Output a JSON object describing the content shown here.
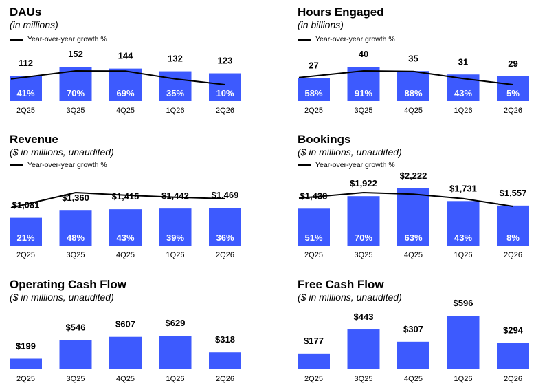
{
  "chart_data": [
    {
      "type": "bar",
      "title": "DAUs",
      "subtitle": "(in millions)",
      "legend": "Year-over-year growth %",
      "categories": [
        "2Q25",
        "3Q25",
        "4Q25",
        "1Q26",
        "2Q26"
      ],
      "values": [
        112,
        152,
        144,
        132,
        123
      ],
      "value_labels": [
        "112",
        "152",
        "144",
        "132",
        "123"
      ],
      "growth_labels": [
        "41%",
        "70%",
        "69%",
        "35%",
        "10%"
      ],
      "growth": [
        41,
        70,
        69,
        35,
        10
      ],
      "ylim": [
        0,
        152
      ]
    },
    {
      "type": "bar",
      "title": "Hours Engaged",
      "subtitle": "(in billions)",
      "legend": "Year-over-year growth %",
      "categories": [
        "2Q25",
        "3Q25",
        "4Q25",
        "1Q26",
        "2Q26"
      ],
      "values": [
        27,
        40,
        35,
        31,
        29
      ],
      "value_labels": [
        "27",
        "40",
        "35",
        "31",
        "29"
      ],
      "growth_labels": [
        "58%",
        "91%",
        "88%",
        "43%",
        "5%"
      ],
      "growth": [
        58,
        91,
        88,
        43,
        5
      ],
      "ylim": [
        0,
        40
      ]
    },
    {
      "type": "bar",
      "title": "Revenue",
      "subtitle": "($ in millions, unaudited)",
      "legend": "Year-over-year growth %",
      "categories": [
        "2Q25",
        "3Q25",
        "4Q25",
        "1Q26",
        "2Q26"
      ],
      "values": [
        1081,
        1360,
        1415,
        1442,
        1469
      ],
      "value_labels": [
        "$1,081",
        "$1,360",
        "$1,415",
        "$1,442",
        "$1,469"
      ],
      "growth_labels": [
        "21%",
        "48%",
        "43%",
        "39%",
        "36%"
      ],
      "growth": [
        21,
        48,
        43,
        39,
        36
      ],
      "ylim": [
        0,
        2222
      ]
    },
    {
      "type": "bar",
      "title": "Bookings",
      "subtitle": "($ in millions, unaudited)",
      "legend": "Year-over-year growth %",
      "categories": [
        "2Q25",
        "3Q25",
        "4Q25",
        "1Q26",
        "2Q26"
      ],
      "values": [
        1438,
        1922,
        2222,
        1731,
        1557
      ],
      "value_labels": [
        "$1,438",
        "$1,922",
        "$2,222",
        "$1,731",
        "$1,557"
      ],
      "growth_labels": [
        "51%",
        "70%",
        "63%",
        "43%",
        "8%"
      ],
      "growth": [
        51,
        70,
        63,
        43,
        8
      ],
      "ylim": [
        0,
        2222
      ]
    },
    {
      "type": "bar",
      "title": "Operating Cash Flow",
      "subtitle": "($ in millions, unaudited)",
      "categories": [
        "2Q25",
        "3Q25",
        "4Q25",
        "1Q26",
        "2Q26"
      ],
      "values": [
        199,
        546,
        607,
        629,
        318
      ],
      "value_labels": [
        "$199",
        "$546",
        "$607",
        "$629",
        "$318"
      ],
      "ylim": [
        0,
        629
      ]
    },
    {
      "type": "bar",
      "title": "Free Cash Flow",
      "subtitle": "($ in millions, unaudited)",
      "categories": [
        "2Q25",
        "3Q25",
        "4Q25",
        "1Q26",
        "2Q26"
      ],
      "values": [
        177,
        443,
        307,
        596,
        294
      ],
      "value_labels": [
        "$177",
        "$443",
        "$307",
        "$596",
        "$294"
      ],
      "ylim": [
        0,
        596
      ]
    }
  ],
  "colors": {
    "bar": "#3d5afe",
    "line": "#000000",
    "inner_label": "#ffffff"
  }
}
